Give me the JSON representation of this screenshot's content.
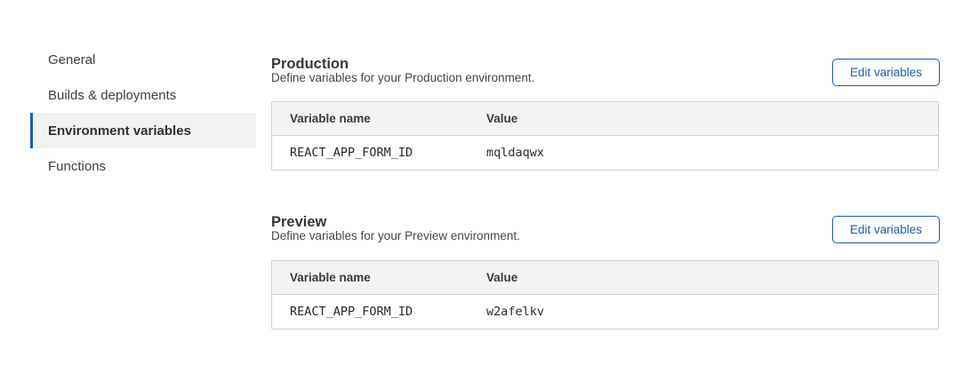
{
  "sidebar": {
    "items": [
      {
        "label": "General",
        "active": false
      },
      {
        "label": "Builds & deployments",
        "active": false
      },
      {
        "label": "Environment variables",
        "active": true
      },
      {
        "label": "Functions",
        "active": false
      }
    ]
  },
  "sections": [
    {
      "title": "Production",
      "description": "Define variables for your Production environment.",
      "button_label": "Edit variables",
      "table": {
        "columns": [
          "Variable name",
          "Value"
        ],
        "rows": [
          {
            "name": "REACT_APP_FORM_ID",
            "value": "mqldaqwx"
          }
        ]
      }
    },
    {
      "title": "Preview",
      "description": "Define variables for your Preview environment.",
      "button_label": "Edit variables",
      "table": {
        "columns": [
          "Variable name",
          "Value"
        ],
        "rows": [
          {
            "name": "REACT_APP_FORM_ID",
            "value": "w2afelkv"
          }
        ]
      }
    }
  ],
  "colors": {
    "accent_blue": "#2059ae",
    "sidebar_active_indicator": "#1d5bb0",
    "sidebar_active_bg": "#f1f1f2",
    "table_header_bg": "#f3f3f4",
    "table_border": "#d0d0d1",
    "page_bg": "#ffffff"
  }
}
